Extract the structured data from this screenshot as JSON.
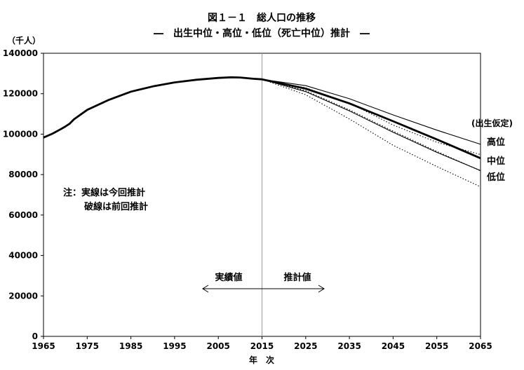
{
  "chart_data": {
    "type": "line",
    "title": "図１－１　総人口の推移",
    "subtitle": "―　出生中位・高位・低位（死亡中位）推計　―",
    "ylabel": "（千人）",
    "xlabel": "年　次",
    "xlim": [
      1965,
      2065
    ],
    "ylim": [
      0,
      140000
    ],
    "x_ticks": [
      "1965",
      "1975",
      "1985",
      "1995",
      "2005",
      "2015",
      "2025",
      "2035",
      "2045",
      "2055",
      "2065"
    ],
    "y_ticks": [
      "0",
      "20000",
      "40000",
      "60000",
      "80000",
      "100000",
      "120000",
      "140000"
    ],
    "grid": false,
    "divider_year": 2015,
    "legend_title": "(出生仮定)",
    "annotations": {
      "note_line1": "注：実線は今回推計",
      "note_line2": "破線は前回推計",
      "actual": "実績値",
      "projected": "推計値"
    },
    "series": [
      {
        "name": "",
        "style": "solid-bold",
        "x": [
          1965,
          1967,
          1969,
          1970,
          1971,
          1972,
          1975,
          1980,
          1985,
          1990,
          1995,
          2000,
          2005,
          2008,
          2010,
          2013,
          2015
        ],
        "values": [
          98300,
          100200,
          102500,
          103800,
          105200,
          107400,
          112000,
          117000,
          121000,
          123600,
          125600,
          126900,
          127800,
          128100,
          128000,
          127400,
          127100
        ]
      },
      {
        "name": "高位",
        "style": "solid",
        "x": [
          2015,
          2025,
          2035,
          2045,
          2055,
          2065
        ],
        "values": [
          127100,
          124000,
          117500,
          109500,
          102000,
          95000
        ]
      },
      {
        "name": "中位",
        "style": "solid-bold",
        "x": [
          2015,
          2025,
          2035,
          2045,
          2055,
          2065
        ],
        "values": [
          127100,
          122500,
          115200,
          106400,
          97400,
          88100
        ]
      },
      {
        "name": "低位",
        "style": "solid",
        "x": [
          2015,
          2025,
          2035,
          2045,
          2055,
          2065
        ],
        "values": [
          127100,
          121000,
          111500,
          100900,
          91000,
          82000
        ]
      },
      {
        "name": "",
        "style": "dotted",
        "x": [
          2015,
          2025,
          2035,
          2045,
          2055,
          2065
        ],
        "values": [
          127100,
          122900,
          115400,
          104500,
          96000,
          89900
        ]
      },
      {
        "name": "",
        "style": "dotted",
        "x": [
          2015,
          2025,
          2035,
          2045,
          2055,
          2065
        ],
        "values": [
          127100,
          121500,
          112000,
          101500,
          91500,
          81800
        ]
      },
      {
        "name": "",
        "style": "dotted",
        "x": [
          2015,
          2025,
          2035,
          2045,
          2055,
          2065
        ],
        "values": [
          127100,
          119500,
          107500,
          94500,
          84000,
          74000
        ]
      }
    ],
    "series_labels": [
      "高位",
      "中位",
      "低位"
    ]
  }
}
